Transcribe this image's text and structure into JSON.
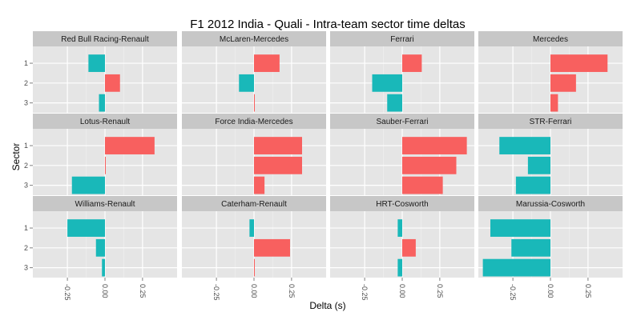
{
  "chart_data": {
    "type": "bar",
    "title": "F1  2012 India - Quali - Intra-team sector time deltas",
    "xlabel": "Delta (s)",
    "ylabel": "Sector",
    "categories": [
      "1",
      "2",
      "3"
    ],
    "xlim": [
      -0.48,
      0.48
    ],
    "x_ticks": [
      -0.25,
      0.0,
      0.25
    ],
    "x_tick_labels": [
      "-0.25",
      "0.00",
      "0.25"
    ],
    "grid": true,
    "colors": {
      "positive": "#f8605f",
      "negative": "#19b8b9",
      "panel": "#e5e5e5",
      "strip": "#c7c7c7",
      "grid": "#ffffff"
    },
    "panels": [
      {
        "team": "Red Bull Racing-Renault",
        "values": [
          -0.11,
          0.1,
          -0.04
        ]
      },
      {
        "team": "McLaren-Mercedes",
        "values": [
          0.17,
          -0.1,
          0.005
        ]
      },
      {
        "team": "Ferrari",
        "values": [
          0.13,
          -0.2,
          -0.1
        ]
      },
      {
        "team": "Mercedes",
        "values": [
          0.38,
          0.17,
          0.05
        ]
      },
      {
        "team": "Lotus-Renault",
        "values": [
          0.33,
          0.005,
          -0.22
        ]
      },
      {
        "team": "Force India-Mercedes",
        "values": [
          0.32,
          0.32,
          0.07
        ]
      },
      {
        "team": "Sauber-Ferrari",
        "values": [
          0.43,
          0.36,
          0.27
        ]
      },
      {
        "team": "STR-Ferrari",
        "values": [
          -0.34,
          -0.15,
          -0.23
        ]
      },
      {
        "team": "Williams-Renault",
        "values": [
          -0.25,
          -0.06,
          -0.02
        ]
      },
      {
        "team": "Caterham-Renault",
        "values": [
          -0.03,
          0.24,
          0.005
        ]
      },
      {
        "team": "HRT-Cosworth",
        "values": [
          -0.03,
          0.09,
          -0.03
        ]
      },
      {
        "team": "Marussia-Cosworth",
        "values": [
          -0.4,
          -0.26,
          -0.45
        ]
      }
    ]
  }
}
